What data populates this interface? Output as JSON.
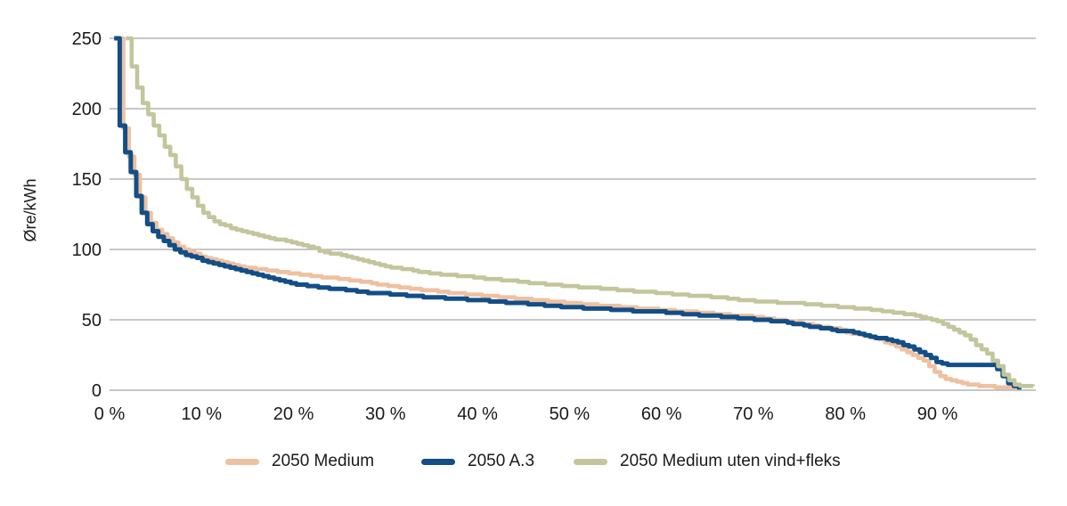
{
  "chart_data": {
    "type": "line",
    "subtype": "stepped-duration-curve",
    "title": "",
    "xlabel": "",
    "ylabel": "Øre/kWh",
    "x_unit": "%",
    "xlim": [
      0,
      100.7
    ],
    "ylim": [
      0,
      250
    ],
    "grid": "horizontal",
    "legend_position": "bottom",
    "x_ticks": [
      {
        "value": 0,
        "label": "0 %"
      },
      {
        "value": 10,
        "label": "10 %"
      },
      {
        "value": 20,
        "label": "20 %"
      },
      {
        "value": 30,
        "label": "30 %"
      },
      {
        "value": 40,
        "label": "40 %"
      },
      {
        "value": 50,
        "label": "50 %"
      },
      {
        "value": 60,
        "label": "60 %"
      },
      {
        "value": 70,
        "label": "70 %"
      },
      {
        "value": 80,
        "label": "80 %"
      },
      {
        "value": 90,
        "label": "90 %"
      }
    ],
    "y_ticks": [
      {
        "value": 0,
        "label": "0"
      },
      {
        "value": 50,
        "label": "50"
      },
      {
        "value": 100,
        "label": "100"
      },
      {
        "value": 150,
        "label": "150"
      },
      {
        "value": 200,
        "label": "200"
      },
      {
        "value": 250,
        "label": "250"
      }
    ],
    "series": [
      {
        "name": "2050 Medium",
        "color": "#EEC1A1",
        "stroke_width": 4.6,
        "points": [
          [
            0.9,
            250
          ],
          [
            1.0,
            233
          ],
          [
            1.12,
            216
          ],
          [
            1.3,
            199
          ],
          [
            1.5,
            186
          ],
          [
            1.8,
            175
          ],
          [
            2.1,
            166
          ],
          [
            2.5,
            157
          ],
          [
            2.9,
            148
          ],
          [
            3.3,
            137
          ],
          [
            3.7,
            129
          ],
          [
            4.3,
            121
          ],
          [
            5,
            115
          ],
          [
            6,
            109
          ],
          [
            7,
            104
          ],
          [
            8,
            100
          ],
          [
            9,
            97.5
          ],
          [
            10,
            95
          ],
          [
            11,
            93
          ],
          [
            12,
            91
          ],
          [
            13.5,
            89
          ],
          [
            15,
            87
          ],
          [
            17,
            85.5
          ],
          [
            20,
            83
          ],
          [
            23,
            80.5
          ],
          [
            26,
            78.5
          ],
          [
            28,
            76.5
          ],
          [
            30,
            74.5
          ],
          [
            33,
            72
          ],
          [
            36,
            70
          ],
          [
            40,
            67.5
          ],
          [
            44,
            65.5
          ],
          [
            48,
            63
          ],
          [
            50,
            62
          ],
          [
            54,
            60
          ],
          [
            58,
            58
          ],
          [
            60,
            57.2
          ],
          [
            64,
            55.2
          ],
          [
            68,
            53.2
          ],
          [
            70,
            52.2
          ],
          [
            72,
            50.7
          ],
          [
            75.2,
            47.4
          ],
          [
            77,
            45.5
          ],
          [
            79,
            43.5
          ],
          [
            80,
            41.5
          ],
          [
            82,
            38.5
          ],
          [
            84,
            35.2
          ],
          [
            84.9,
            32.5
          ],
          [
            86,
            29.5
          ],
          [
            87,
            26.5
          ],
          [
            88,
            23
          ],
          [
            88.8,
            19.5
          ],
          [
            89.5,
            14.5
          ],
          [
            90.2,
            10
          ],
          [
            91,
            7.5
          ],
          [
            92,
            5.8
          ],
          [
            93,
            4.5
          ],
          [
            94,
            3.5
          ],
          [
            95,
            2.8
          ],
          [
            96.5,
            2.2
          ],
          [
            98.2,
            2
          ],
          [
            98.6,
            0.8
          ]
        ]
      },
      {
        "name": "2050 A.3",
        "color": "#134E87",
        "stroke_width": 5.0,
        "points": [
          [
            0.5,
            250
          ],
          [
            0.62,
            232
          ],
          [
            0.75,
            215
          ],
          [
            0.9,
            201
          ],
          [
            1.05,
            190
          ],
          [
            1.25,
            181
          ],
          [
            1.55,
            173
          ],
          [
            1.85,
            165
          ],
          [
            2.15,
            158
          ],
          [
            2.45,
            152
          ],
          [
            2.75,
            143
          ],
          [
            3.05,
            133
          ],
          [
            3.55,
            125
          ],
          [
            4.2,
            117
          ],
          [
            5,
            111
          ],
          [
            6,
            105
          ],
          [
            7,
            100.5
          ],
          [
            8,
            97
          ],
          [
            9,
            94.5
          ],
          [
            10,
            92.5
          ],
          [
            11,
            90.5
          ],
          [
            12,
            88.5
          ],
          [
            13.5,
            86
          ],
          [
            15,
            84
          ],
          [
            17,
            81
          ],
          [
            18.5,
            78
          ],
          [
            20,
            75.5
          ],
          [
            23,
            73
          ],
          [
            26,
            71
          ],
          [
            28,
            69.5
          ],
          [
            30,
            68.5
          ],
          [
            33,
            67
          ],
          [
            36,
            65.5
          ],
          [
            40,
            64
          ],
          [
            44,
            62
          ],
          [
            48,
            60
          ],
          [
            50,
            59
          ],
          [
            54,
            57.5
          ],
          [
            58,
            56
          ],
          [
            60,
            55.5
          ],
          [
            64,
            53.5
          ],
          [
            68,
            51.5
          ],
          [
            71,
            50
          ],
          [
            73,
            48.8
          ],
          [
            75.2,
            46.2
          ],
          [
            77,
            44.5
          ],
          [
            79,
            42.5
          ],
          [
            80,
            42
          ],
          [
            81.5,
            39.5
          ],
          [
            83,
            37.5
          ],
          [
            84.9,
            35.5
          ],
          [
            86,
            33
          ],
          [
            87,
            30.5
          ],
          [
            88,
            27.5
          ],
          [
            88.8,
            25
          ],
          [
            89.6,
            21
          ],
          [
            90.3,
            18.8
          ],
          [
            90.8,
            18.2
          ],
          [
            96.2,
            18.2
          ],
          [
            96.6,
            14
          ],
          [
            97.1,
            10
          ],
          [
            97.6,
            6
          ],
          [
            98,
            3
          ],
          [
            98.6,
            2
          ],
          [
            98.9,
            0.5
          ]
        ]
      },
      {
        "name": "2050 Medium uten vind+fleks",
        "color": "#C3C69C",
        "stroke_width": 4.6,
        "points": [
          [
            1.8,
            250
          ],
          [
            2.0,
            241
          ],
          [
            2.3,
            232
          ],
          [
            2.7,
            222
          ],
          [
            3.1,
            212
          ],
          [
            3.5,
            205
          ],
          [
            3.9,
            200
          ],
          [
            4.4,
            193
          ],
          [
            5,
            186
          ],
          [
            5.6,
            178
          ],
          [
            6.3,
            170
          ],
          [
            7,
            162
          ],
          [
            7.8,
            150
          ],
          [
            8.5,
            142
          ],
          [
            9.2,
            135
          ],
          [
            10,
            127.5
          ],
          [
            11,
            122
          ],
          [
            12,
            118
          ],
          [
            13.5,
            114.5
          ],
          [
            15,
            111.5
          ],
          [
            17,
            108.5
          ],
          [
            19,
            106
          ],
          [
            21,
            103
          ],
          [
            22.5,
            100
          ],
          [
            24,
            97.5
          ],
          [
            26,
            94.5
          ],
          [
            28,
            91
          ],
          [
            30,
            88
          ],
          [
            33,
            85
          ],
          [
            36,
            82.5
          ],
          [
            40,
            80
          ],
          [
            44,
            77.5
          ],
          [
            48,
            75
          ],
          [
            50,
            74
          ],
          [
            53,
            72.5
          ],
          [
            56,
            71
          ],
          [
            60,
            69
          ],
          [
            63,
            67.5
          ],
          [
            66,
            66
          ],
          [
            70,
            63.5
          ],
          [
            73,
            62.3
          ],
          [
            75,
            61.5
          ],
          [
            78,
            60
          ],
          [
            80,
            59
          ],
          [
            83,
            57
          ],
          [
            86,
            54.5
          ],
          [
            88,
            52.5
          ],
          [
            88.8,
            51
          ],
          [
            90,
            48.5
          ],
          [
            91.5,
            44.5
          ],
          [
            92.5,
            41
          ],
          [
            93.3,
            37.5
          ],
          [
            94.2,
            32
          ],
          [
            95.2,
            27
          ],
          [
            96,
            21
          ],
          [
            96.8,
            15
          ],
          [
            97.4,
            9.5
          ],
          [
            98,
            5.5
          ],
          [
            98.5,
            3.5
          ],
          [
            100.4,
            2.8
          ]
        ]
      }
    ]
  },
  "colors": {
    "gridline": "#8f8f8f",
    "text": "#1a1a1a",
    "background": "#ffffff"
  }
}
